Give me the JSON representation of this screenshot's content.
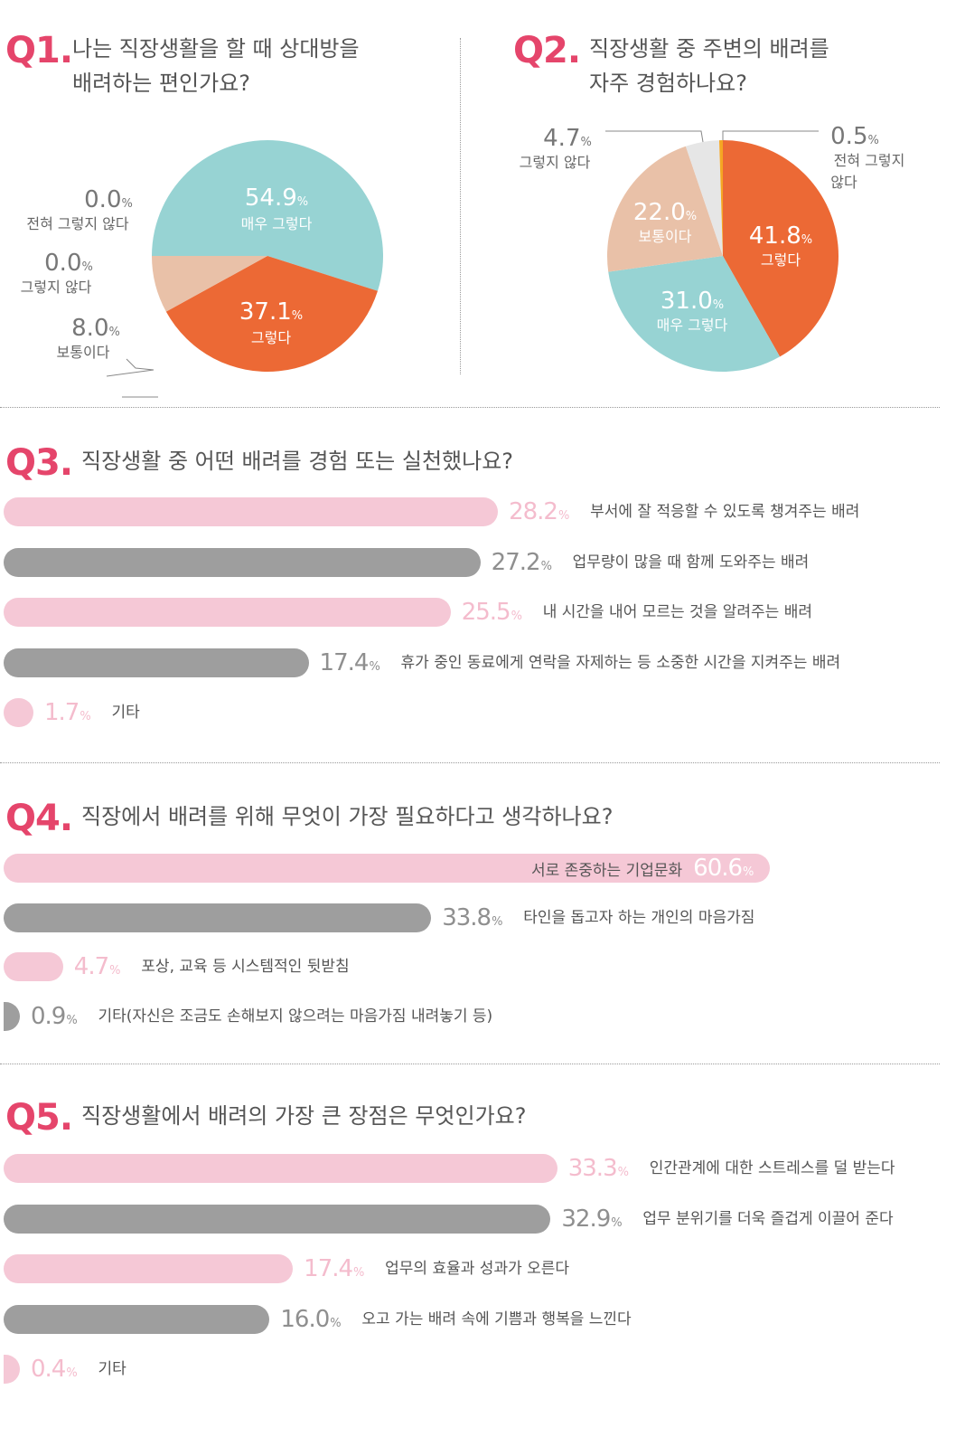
{
  "colors": {
    "accent": "#e5456b",
    "teal": "#97d3d3",
    "orange": "#ec6935",
    "beige": "#e9c1a8",
    "lightgray": "#e6e6e6",
    "yellow": "#f5a623",
    "pink_bar": "#f5c8d6",
    "gray_bar": "#9e9e9e"
  },
  "q1": {
    "num": "Q1.",
    "title_line1": "나는 직장생활을 할 때 상대방을",
    "title_line2": "배려하는 편인가요?"
  },
  "q2": {
    "num": "Q2.",
    "title_line1": "직장생활 중 주변의 배려를",
    "title_line2": "자주 경험하나요?"
  },
  "q3": {
    "num": "Q3.",
    "title": "직장생활 중 어떤 배려를 경험 또는 실천했나요?"
  },
  "q4": {
    "num": "Q4.",
    "title": "직장에서 배려를 위해 무엇이 가장 필요하다고 생각하나요?"
  },
  "q5": {
    "num": "Q5.",
    "title": "직장생활에서 배려의 가장 큰 장점은 무엇인가요?"
  },
  "pct_sign": "%",
  "chart_data": [
    {
      "id": "q1",
      "type": "pie",
      "slices": [
        {
          "label": "매우 그렇다",
          "value": 54.9,
          "value_text": "54.9",
          "color": "#97d3d3"
        },
        {
          "label": "그렇다",
          "value": 37.1,
          "value_text": "37.1",
          "color": "#ec6935"
        },
        {
          "label": "보통이다",
          "value": 8.0,
          "value_text": "8.0",
          "color": "#e9c1a8"
        },
        {
          "label": "그렇지 않다",
          "value": 0.0,
          "value_text": "0.0",
          "color": "#e6e6e6"
        },
        {
          "label": "전혀 그렇지 않다",
          "value": 0.0,
          "value_text": "0.0",
          "color": "#f5a623"
        }
      ]
    },
    {
      "id": "q2",
      "type": "pie",
      "slices": [
        {
          "label": "그렇다",
          "value": 41.8,
          "value_text": "41.8",
          "color": "#ec6935"
        },
        {
          "label": "매우 그렇다",
          "value": 31.0,
          "value_text": "31.0",
          "color": "#97d3d3"
        },
        {
          "label": "보통이다",
          "value": 22.0,
          "value_text": "22.0",
          "color": "#e9c1a8"
        },
        {
          "label": "그렇지 않다",
          "value": 4.7,
          "value_text": "4.7",
          "color": "#e6e6e6"
        },
        {
          "label": "전혀 그렇지 않다",
          "label_line1": "전혀 그렇지",
          "label_line2": "않다",
          "value": 0.5,
          "value_text": "0.5",
          "color": "#f5a623"
        }
      ]
    },
    {
      "id": "q3",
      "type": "bar",
      "orientation": "horizontal",
      "categories": [
        "부서에 잘 적응할 수 있도록 챙겨주는 배려",
        "업무량이 많을 때 함께 도와주는 배려",
        "내 시간을 내어 모르는 것을 알려주는 배려",
        "휴가 중인 동료에게 연락을 자제하는 등 소중한 시간을 지켜주는 배려",
        "기타"
      ],
      "values": [
        28.2,
        27.2,
        25.5,
        17.4,
        1.7
      ],
      "value_texts": [
        "28.2",
        "27.2",
        "25.5",
        "17.4",
        "1.7"
      ]
    },
    {
      "id": "q4",
      "type": "bar",
      "orientation": "horizontal",
      "categories": [
        "서로 존중하는 기업문화",
        "타인을 돕고자 하는 개인의 마음가짐",
        "포상, 교육 등 시스템적인 뒷받침",
        "기타(자신은 조금도 손해보지 않으려는 마음가짐 내려놓기 등)"
      ],
      "values": [
        60.6,
        33.8,
        4.7,
        0.9
      ],
      "value_texts": [
        "60.6",
        "33.8",
        "4.7",
        "0.9"
      ]
    },
    {
      "id": "q5",
      "type": "bar",
      "orientation": "horizontal",
      "categories": [
        "인간관계에 대한 스트레스를 덜 받는다",
        "업무 분위기를 더욱 즐겁게 이끌어 준다",
        "업무의 효율과 성과가 오른다",
        "오고 가는 배려 속에 기쁨과 행복을 느낀다",
        "기타"
      ],
      "values": [
        33.3,
        32.9,
        17.4,
        16.0,
        0.4
      ],
      "value_texts": [
        "33.3",
        "32.9",
        "17.4",
        "16.0",
        "0.4"
      ]
    }
  ]
}
